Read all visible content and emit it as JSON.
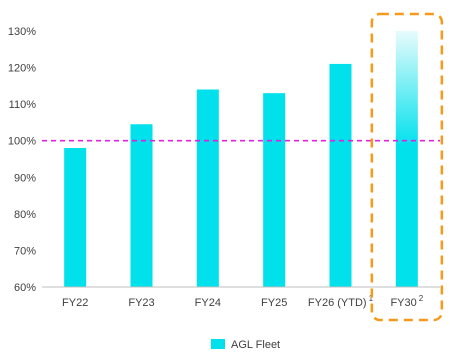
{
  "chart_data": {
    "type": "bar",
    "categories": [
      "FY22",
      "FY23",
      "FY24",
      "FY25",
      "FY26 (YTD)",
      "FY30"
    ],
    "category_superscripts": [
      "",
      "",
      "",
      "",
      "1",
      "2"
    ],
    "series": [
      {
        "name": "AGL Fleet",
        "values": [
          98,
          104.5,
          114,
          113,
          121,
          130
        ]
      }
    ],
    "ylim": [
      60,
      130
    ],
    "yticks": [
      60,
      70,
      80,
      90,
      100,
      110,
      120,
      130
    ],
    "ytick_labels": [
      "60%",
      "70%",
      "80%",
      "90%",
      "100%",
      "110%",
      "120%",
      "130%"
    ],
    "reference_line": {
      "value": 100,
      "style": "dashed",
      "color": "#e020e0"
    },
    "highlight_category": "FY30",
    "highlight_style": "dashed rounded box",
    "colors": {
      "bar": "#00e1ec",
      "bar_fade_top": "#e8fbfc",
      "reference": "#e020e0",
      "highlight_box": "#f59a1a",
      "axis": "#bfbfbf"
    },
    "legend": {
      "label": "AGL Fleet",
      "position": "bottom-center"
    },
    "grid": false
  }
}
